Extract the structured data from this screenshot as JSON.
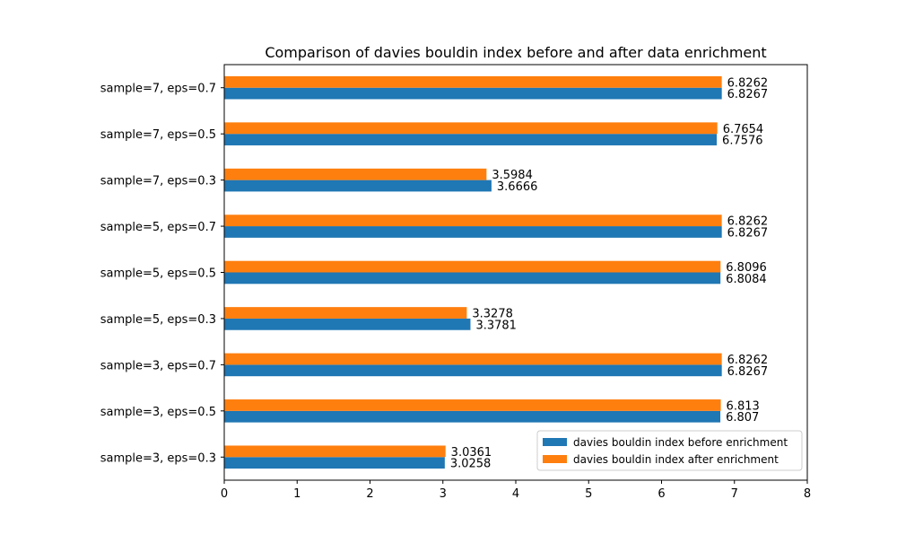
{
  "chart_data": {
    "type": "bar",
    "orientation": "horizontal",
    "title": "Comparison of davies bouldin index before and after data enrichment",
    "xlabel": "",
    "ylabel": "",
    "xlim": [
      0,
      8
    ],
    "x_ticks": [
      "0",
      "1",
      "2",
      "3",
      "4",
      "5",
      "6",
      "7",
      "8"
    ],
    "categories": [
      "sample=3, eps=0.3",
      "sample=3, eps=0.5",
      "sample=3, eps=0.7",
      "sample=5, eps=0.3",
      "sample=5, eps=0.5",
      "sample=5, eps=0.7",
      "sample=7, eps=0.3",
      "sample=7, eps=0.5",
      "sample=7, eps=0.7"
    ],
    "series": [
      {
        "name": "davies bouldin index before enrichment",
        "color": "#1f77b4",
        "values": [
          3.0258,
          6.807,
          6.8267,
          3.3781,
          6.8084,
          6.8267,
          3.6666,
          6.7576,
          6.8267
        ],
        "labels": [
          "3.0258",
          "6.807",
          "6.8267",
          "3.3781",
          "6.8084",
          "6.8267",
          "3.6666",
          "6.7576",
          "6.8267"
        ]
      },
      {
        "name": "davies bouldin index after enrichment",
        "color": "#ff7f0e",
        "values": [
          3.0361,
          6.813,
          6.8262,
          3.3278,
          6.8096,
          6.8262,
          3.5984,
          6.7654,
          6.8262
        ],
        "labels": [
          "3.0361",
          "6.813",
          "6.8262",
          "3.3278",
          "6.8096",
          "6.8262",
          "3.5984",
          "6.7654",
          "6.8262"
        ]
      }
    ],
    "grid": false,
    "legend_position": "lower-right"
  }
}
